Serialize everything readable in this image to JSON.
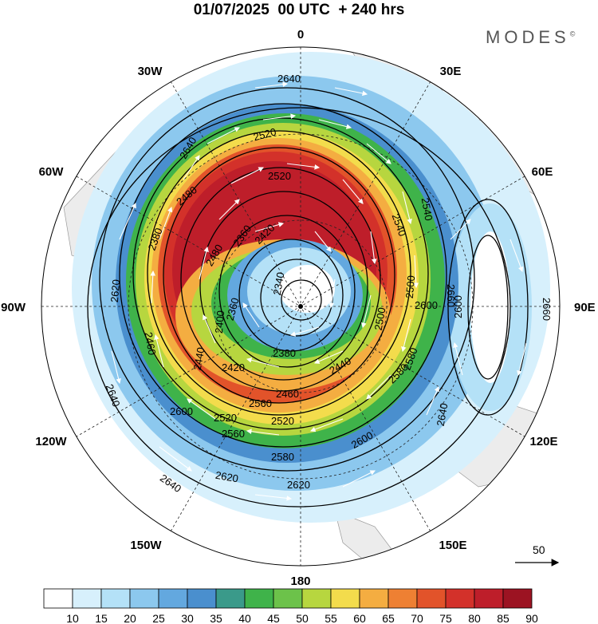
{
  "title": "01/07/2025  00 UTC  + 240 hrs",
  "brand": "MODES",
  "brand_mark": "©",
  "longitude_labels": {
    "lon_0": "0",
    "lon_30e": "30E",
    "lon_60e": "60E",
    "lon_90e": "90E",
    "lon_120e": "120E",
    "lon_150e": "150E",
    "lon_180": "180",
    "lon_150w": "150W",
    "lon_120w": "120W",
    "lon_90w": "90W",
    "lon_60w": "60W",
    "lon_30w": "30W"
  },
  "contour_labels": [
    "2640",
    "2640",
    "2620",
    "2600",
    "2580",
    "2560",
    "2540",
    "2520",
    "2520",
    "2500",
    "2480",
    "2460",
    "2440",
    "2420",
    "2400",
    "2380",
    "2360",
    "2340",
    "2360",
    "2380",
    "2420",
    "2440",
    "2460",
    "2480",
    "2500",
    "2520",
    "2520",
    "2540",
    "2560",
    "2580",
    "2580",
    "2600",
    "2600",
    "2600",
    "2620",
    "2620",
    "2640",
    "2640",
    "2640",
    "2660",
    "2660"
  ],
  "vector_reference": "50",
  "colorbar": {
    "ticks": [
      "10",
      "15",
      "20",
      "25",
      "30",
      "35",
      "40",
      "45",
      "50",
      "55",
      "60",
      "65",
      "70",
      "75",
      "80",
      "85",
      "90"
    ],
    "colors": [
      "#ffffff",
      "#d7f0fc",
      "#b4e1f7",
      "#8cc8ee",
      "#63a8df",
      "#4a8fce",
      "#3a9a8a",
      "#3fb34a",
      "#6cc24a",
      "#b7d63f",
      "#f3dc4c",
      "#f4ad41",
      "#ee8033",
      "#e2532a",
      "#d3312a",
      "#be1e2a",
      "#9c1322"
    ]
  },
  "colors": {
    "background": "#ffffff",
    "land": "#ececec"
  }
}
